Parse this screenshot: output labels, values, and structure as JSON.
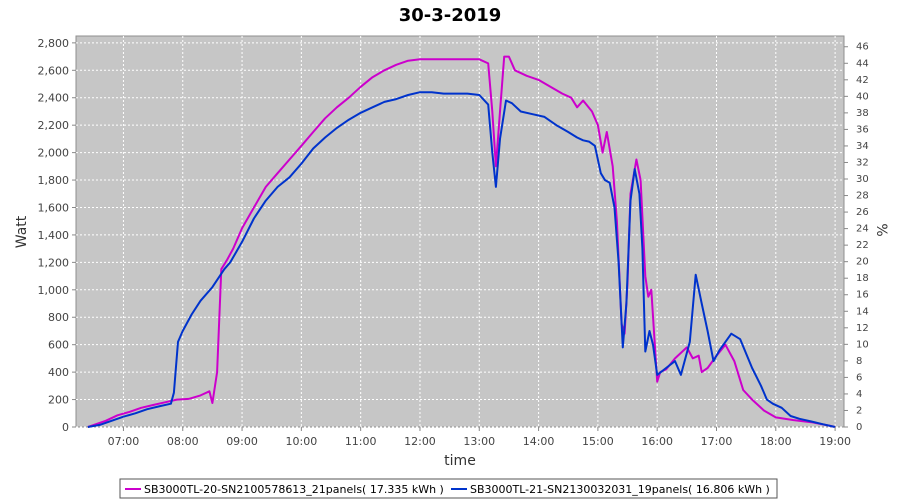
{
  "chart_data": {
    "type": "line",
    "title": "30-3-2019",
    "xlabel": "time",
    "ylabel": "Watt",
    "y2label": "%",
    "xlim": [
      6.2,
      19.15
    ],
    "ylim": [
      0,
      2850
    ],
    "y2lim": [
      0,
      47.3
    ],
    "grid": true,
    "legend_position": "bottom",
    "x_ticks": [
      {
        "v": 7,
        "label": "07:00"
      },
      {
        "v": 8,
        "label": "08:00"
      },
      {
        "v": 9,
        "label": "09:00"
      },
      {
        "v": 10,
        "label": "10:00"
      },
      {
        "v": 11,
        "label": "11:00"
      },
      {
        "v": 12,
        "label": "12:00"
      },
      {
        "v": 13,
        "label": "13:00"
      },
      {
        "v": 14,
        "label": "14:00"
      },
      {
        "v": 15,
        "label": "15:00"
      },
      {
        "v": 16,
        "label": "16:00"
      },
      {
        "v": 17,
        "label": "17:00"
      },
      {
        "v": 18,
        "label": "18:00"
      },
      {
        "v": 19,
        "label": "19:00"
      }
    ],
    "y_ticks": [
      {
        "v": 0,
        "label": "0"
      },
      {
        "v": 200,
        "label": "200"
      },
      {
        "v": 400,
        "label": "400"
      },
      {
        "v": 600,
        "label": "600"
      },
      {
        "v": 800,
        "label": "800"
      },
      {
        "v": 1000,
        "label": "1,000"
      },
      {
        "v": 1200,
        "label": "1,200"
      },
      {
        "v": 1400,
        "label": "1,400"
      },
      {
        "v": 1600,
        "label": "1,600"
      },
      {
        "v": 1800,
        "label": "1,800"
      },
      {
        "v": 2000,
        "label": "2,000"
      },
      {
        "v": 2200,
        "label": "2,200"
      },
      {
        "v": 2400,
        "label": "2,400"
      },
      {
        "v": 2600,
        "label": "2,600"
      },
      {
        "v": 2800,
        "label": "2,800"
      }
    ],
    "y2_ticks": [
      {
        "v": 0,
        "label": "0"
      },
      {
        "v": 2,
        "label": "2"
      },
      {
        "v": 4,
        "label": "4"
      },
      {
        "v": 6,
        "label": "6"
      },
      {
        "v": 8,
        "label": "8"
      },
      {
        "v": 10,
        "label": "10"
      },
      {
        "v": 12,
        "label": "12"
      },
      {
        "v": 14,
        "label": "14"
      },
      {
        "v": 16,
        "label": "16"
      },
      {
        "v": 18,
        "label": "18"
      },
      {
        "v": 20,
        "label": "20"
      },
      {
        "v": 22,
        "label": "22"
      },
      {
        "v": 24,
        "label": "24"
      },
      {
        "v": 26,
        "label": "26"
      },
      {
        "v": 28,
        "label": "28"
      },
      {
        "v": 30,
        "label": "30"
      },
      {
        "v": 32,
        "label": "32"
      },
      {
        "v": 34,
        "label": "34"
      },
      {
        "v": 36,
        "label": "36"
      },
      {
        "v": 38,
        "label": "38"
      },
      {
        "v": 40,
        "label": "40"
      },
      {
        "v": 42,
        "label": "42"
      },
      {
        "v": 44,
        "label": "44"
      },
      {
        "v": 46,
        "label": "46"
      }
    ],
    "series": [
      {
        "name": "SB3000TL-20-SN2100578613_21panels( 17.335 kWh )",
        "color": "#cc00cc",
        "points": [
          [
            6.4,
            0
          ],
          [
            6.5,
            15
          ],
          [
            6.7,
            45
          ],
          [
            6.9,
            85
          ],
          [
            7.1,
            110
          ],
          [
            7.3,
            140
          ],
          [
            7.5,
            160
          ],
          [
            7.7,
            180
          ],
          [
            7.9,
            200
          ],
          [
            8.1,
            205
          ],
          [
            8.3,
            230
          ],
          [
            8.45,
            260
          ],
          [
            8.5,
            175
          ],
          [
            8.58,
            400
          ],
          [
            8.65,
            1150
          ],
          [
            8.75,
            1220
          ],
          [
            8.85,
            1300
          ],
          [
            9.0,
            1450
          ],
          [
            9.2,
            1600
          ],
          [
            9.4,
            1750
          ],
          [
            9.6,
            1850
          ],
          [
            9.8,
            1950
          ],
          [
            10.0,
            2050
          ],
          [
            10.2,
            2150
          ],
          [
            10.4,
            2250
          ],
          [
            10.6,
            2330
          ],
          [
            10.8,
            2400
          ],
          [
            11.0,
            2480
          ],
          [
            11.2,
            2550
          ],
          [
            11.4,
            2600
          ],
          [
            11.6,
            2640
          ],
          [
            11.8,
            2670
          ],
          [
            12.0,
            2680
          ],
          [
            12.2,
            2680
          ],
          [
            12.4,
            2680
          ],
          [
            12.6,
            2680
          ],
          [
            12.8,
            2680
          ],
          [
            13.0,
            2680
          ],
          [
            13.15,
            2650
          ],
          [
            13.22,
            2300
          ],
          [
            13.28,
            1900
          ],
          [
            13.35,
            2300
          ],
          [
            13.42,
            2700
          ],
          [
            13.5,
            2700
          ],
          [
            13.6,
            2600
          ],
          [
            13.8,
            2560
          ],
          [
            14.0,
            2530
          ],
          [
            14.2,
            2480
          ],
          [
            14.4,
            2430
          ],
          [
            14.55,
            2400
          ],
          [
            14.65,
            2330
          ],
          [
            14.75,
            2380
          ],
          [
            14.9,
            2300
          ],
          [
            15.0,
            2200
          ],
          [
            15.08,
            2000
          ],
          [
            15.15,
            2150
          ],
          [
            15.25,
            1900
          ],
          [
            15.32,
            1500
          ],
          [
            15.4,
            750
          ],
          [
            15.45,
            680
          ],
          [
            15.5,
            1050
          ],
          [
            15.55,
            1700
          ],
          [
            15.65,
            1950
          ],
          [
            15.72,
            1800
          ],
          [
            15.8,
            1100
          ],
          [
            15.85,
            950
          ],
          [
            15.9,
            1000
          ],
          [
            16.0,
            330
          ],
          [
            16.05,
            400
          ],
          [
            16.15,
            420
          ],
          [
            16.3,
            500
          ],
          [
            16.5,
            580
          ],
          [
            16.6,
            500
          ],
          [
            16.7,
            520
          ],
          [
            16.75,
            400
          ],
          [
            16.85,
            430
          ],
          [
            17.0,
            520
          ],
          [
            17.15,
            600
          ],
          [
            17.3,
            480
          ],
          [
            17.45,
            270
          ],
          [
            17.6,
            200
          ],
          [
            17.8,
            120
          ],
          [
            18.0,
            70
          ],
          [
            18.3,
            50
          ],
          [
            18.6,
            35
          ],
          [
            18.9,
            10
          ],
          [
            19.0,
            0
          ]
        ]
      },
      {
        "name": "SB3000TL-21-SN2130032031_19panels( 16.806 kWh )",
        "color": "#0033cc",
        "points": [
          [
            6.4,
            0
          ],
          [
            6.6,
            15
          ],
          [
            6.8,
            45
          ],
          [
            7.0,
            75
          ],
          [
            7.2,
            100
          ],
          [
            7.4,
            130
          ],
          [
            7.6,
            150
          ],
          [
            7.8,
            170
          ],
          [
            7.85,
            250
          ],
          [
            7.92,
            620
          ],
          [
            8.0,
            700
          ],
          [
            8.15,
            820
          ],
          [
            8.3,
            920
          ],
          [
            8.5,
            1020
          ],
          [
            8.7,
            1150
          ],
          [
            8.8,
            1200
          ],
          [
            9.0,
            1350
          ],
          [
            9.2,
            1520
          ],
          [
            9.4,
            1650
          ],
          [
            9.6,
            1750
          ],
          [
            9.8,
            1820
          ],
          [
            10.0,
            1920
          ],
          [
            10.2,
            2030
          ],
          [
            10.4,
            2110
          ],
          [
            10.6,
            2180
          ],
          [
            10.8,
            2240
          ],
          [
            11.0,
            2290
          ],
          [
            11.2,
            2330
          ],
          [
            11.4,
            2370
          ],
          [
            11.6,
            2390
          ],
          [
            11.8,
            2420
          ],
          [
            12.0,
            2440
          ],
          [
            12.2,
            2440
          ],
          [
            12.4,
            2430
          ],
          [
            12.6,
            2430
          ],
          [
            12.8,
            2430
          ],
          [
            13.0,
            2420
          ],
          [
            13.15,
            2350
          ],
          [
            13.22,
            2000
          ],
          [
            13.28,
            1750
          ],
          [
            13.35,
            2100
          ],
          [
            13.45,
            2380
          ],
          [
            13.55,
            2360
          ],
          [
            13.7,
            2300
          ],
          [
            13.9,
            2280
          ],
          [
            14.1,
            2260
          ],
          [
            14.3,
            2200
          ],
          [
            14.5,
            2150
          ],
          [
            14.65,
            2110
          ],
          [
            14.75,
            2090
          ],
          [
            14.85,
            2080
          ],
          [
            14.95,
            2050
          ],
          [
            15.05,
            1850
          ],
          [
            15.12,
            1800
          ],
          [
            15.2,
            1780
          ],
          [
            15.28,
            1600
          ],
          [
            15.35,
            1200
          ],
          [
            15.42,
            580
          ],
          [
            15.48,
            900
          ],
          [
            15.55,
            1650
          ],
          [
            15.62,
            1880
          ],
          [
            15.7,
            1700
          ],
          [
            15.75,
            1300
          ],
          [
            15.8,
            550
          ],
          [
            15.87,
            700
          ],
          [
            15.93,
            600
          ],
          [
            16.0,
            380
          ],
          [
            16.15,
            430
          ],
          [
            16.3,
            480
          ],
          [
            16.4,
            380
          ],
          [
            16.55,
            620
          ],
          [
            16.65,
            1110
          ],
          [
            16.75,
            900
          ],
          [
            16.85,
            700
          ],
          [
            16.95,
            480
          ],
          [
            17.05,
            560
          ],
          [
            17.15,
            620
          ],
          [
            17.25,
            680
          ],
          [
            17.4,
            640
          ],
          [
            17.6,
            430
          ],
          [
            17.75,
            300
          ],
          [
            17.85,
            200
          ],
          [
            17.95,
            170
          ],
          [
            18.1,
            140
          ],
          [
            18.25,
            80
          ],
          [
            18.4,
            60
          ],
          [
            18.6,
            40
          ],
          [
            18.8,
            20
          ],
          [
            19.0,
            0
          ]
        ]
      }
    ]
  }
}
